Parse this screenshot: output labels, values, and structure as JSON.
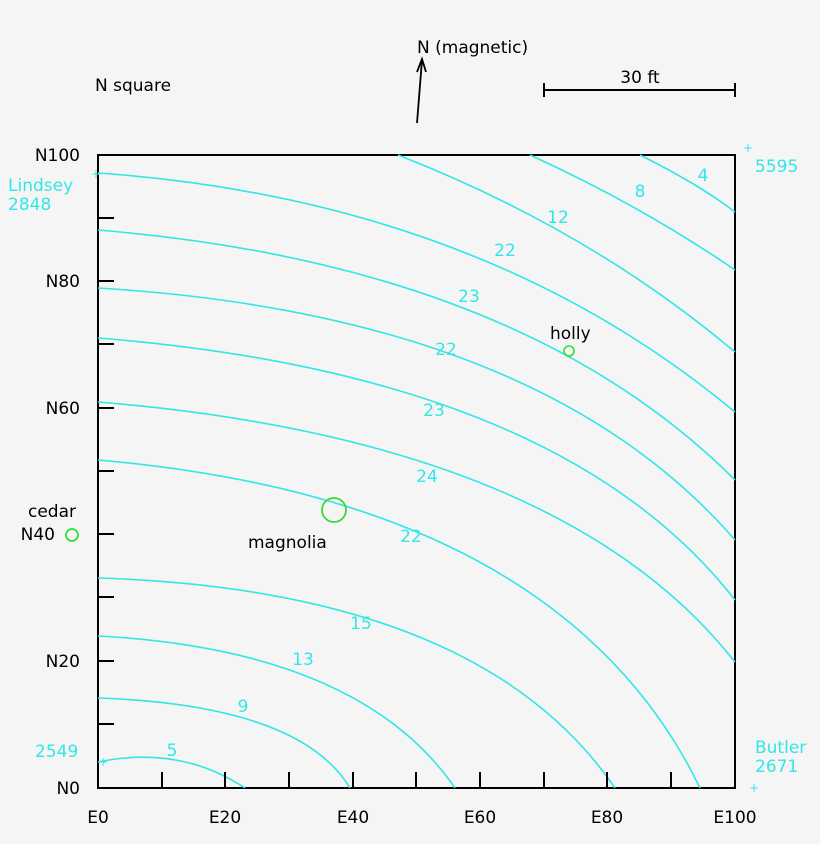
{
  "header": {
    "n_square": "N square",
    "n_magnetic": "N (magnetic)",
    "scale_label": "30 ft"
  },
  "axes": {
    "y_ticks": [
      "N100",
      "N80",
      "N60",
      "N40",
      "N20",
      "N0"
    ],
    "x_ticks": [
      "E0",
      "E20",
      "E40",
      "E60",
      "E80",
      "E100"
    ]
  },
  "corners": {
    "top_left_name": "Lindsey",
    "top_left_value": "2848",
    "top_right_value": "5595",
    "bottom_left_value": "2549",
    "bottom_right_name": "Butler",
    "bottom_right_value": "2671"
  },
  "contour_labels": [
    "4",
    "8",
    "12",
    "22",
    "23",
    "22",
    "23",
    "24",
    "22",
    "15",
    "13",
    "9",
    "5"
  ],
  "trees": {
    "holly": "holly",
    "magnolia": "magnolia",
    "cedar": "cedar"
  },
  "colors": {
    "contour": "#33e6e6",
    "tree": "#33dd33",
    "text": "#000000",
    "background": "#f5f5f5"
  }
}
